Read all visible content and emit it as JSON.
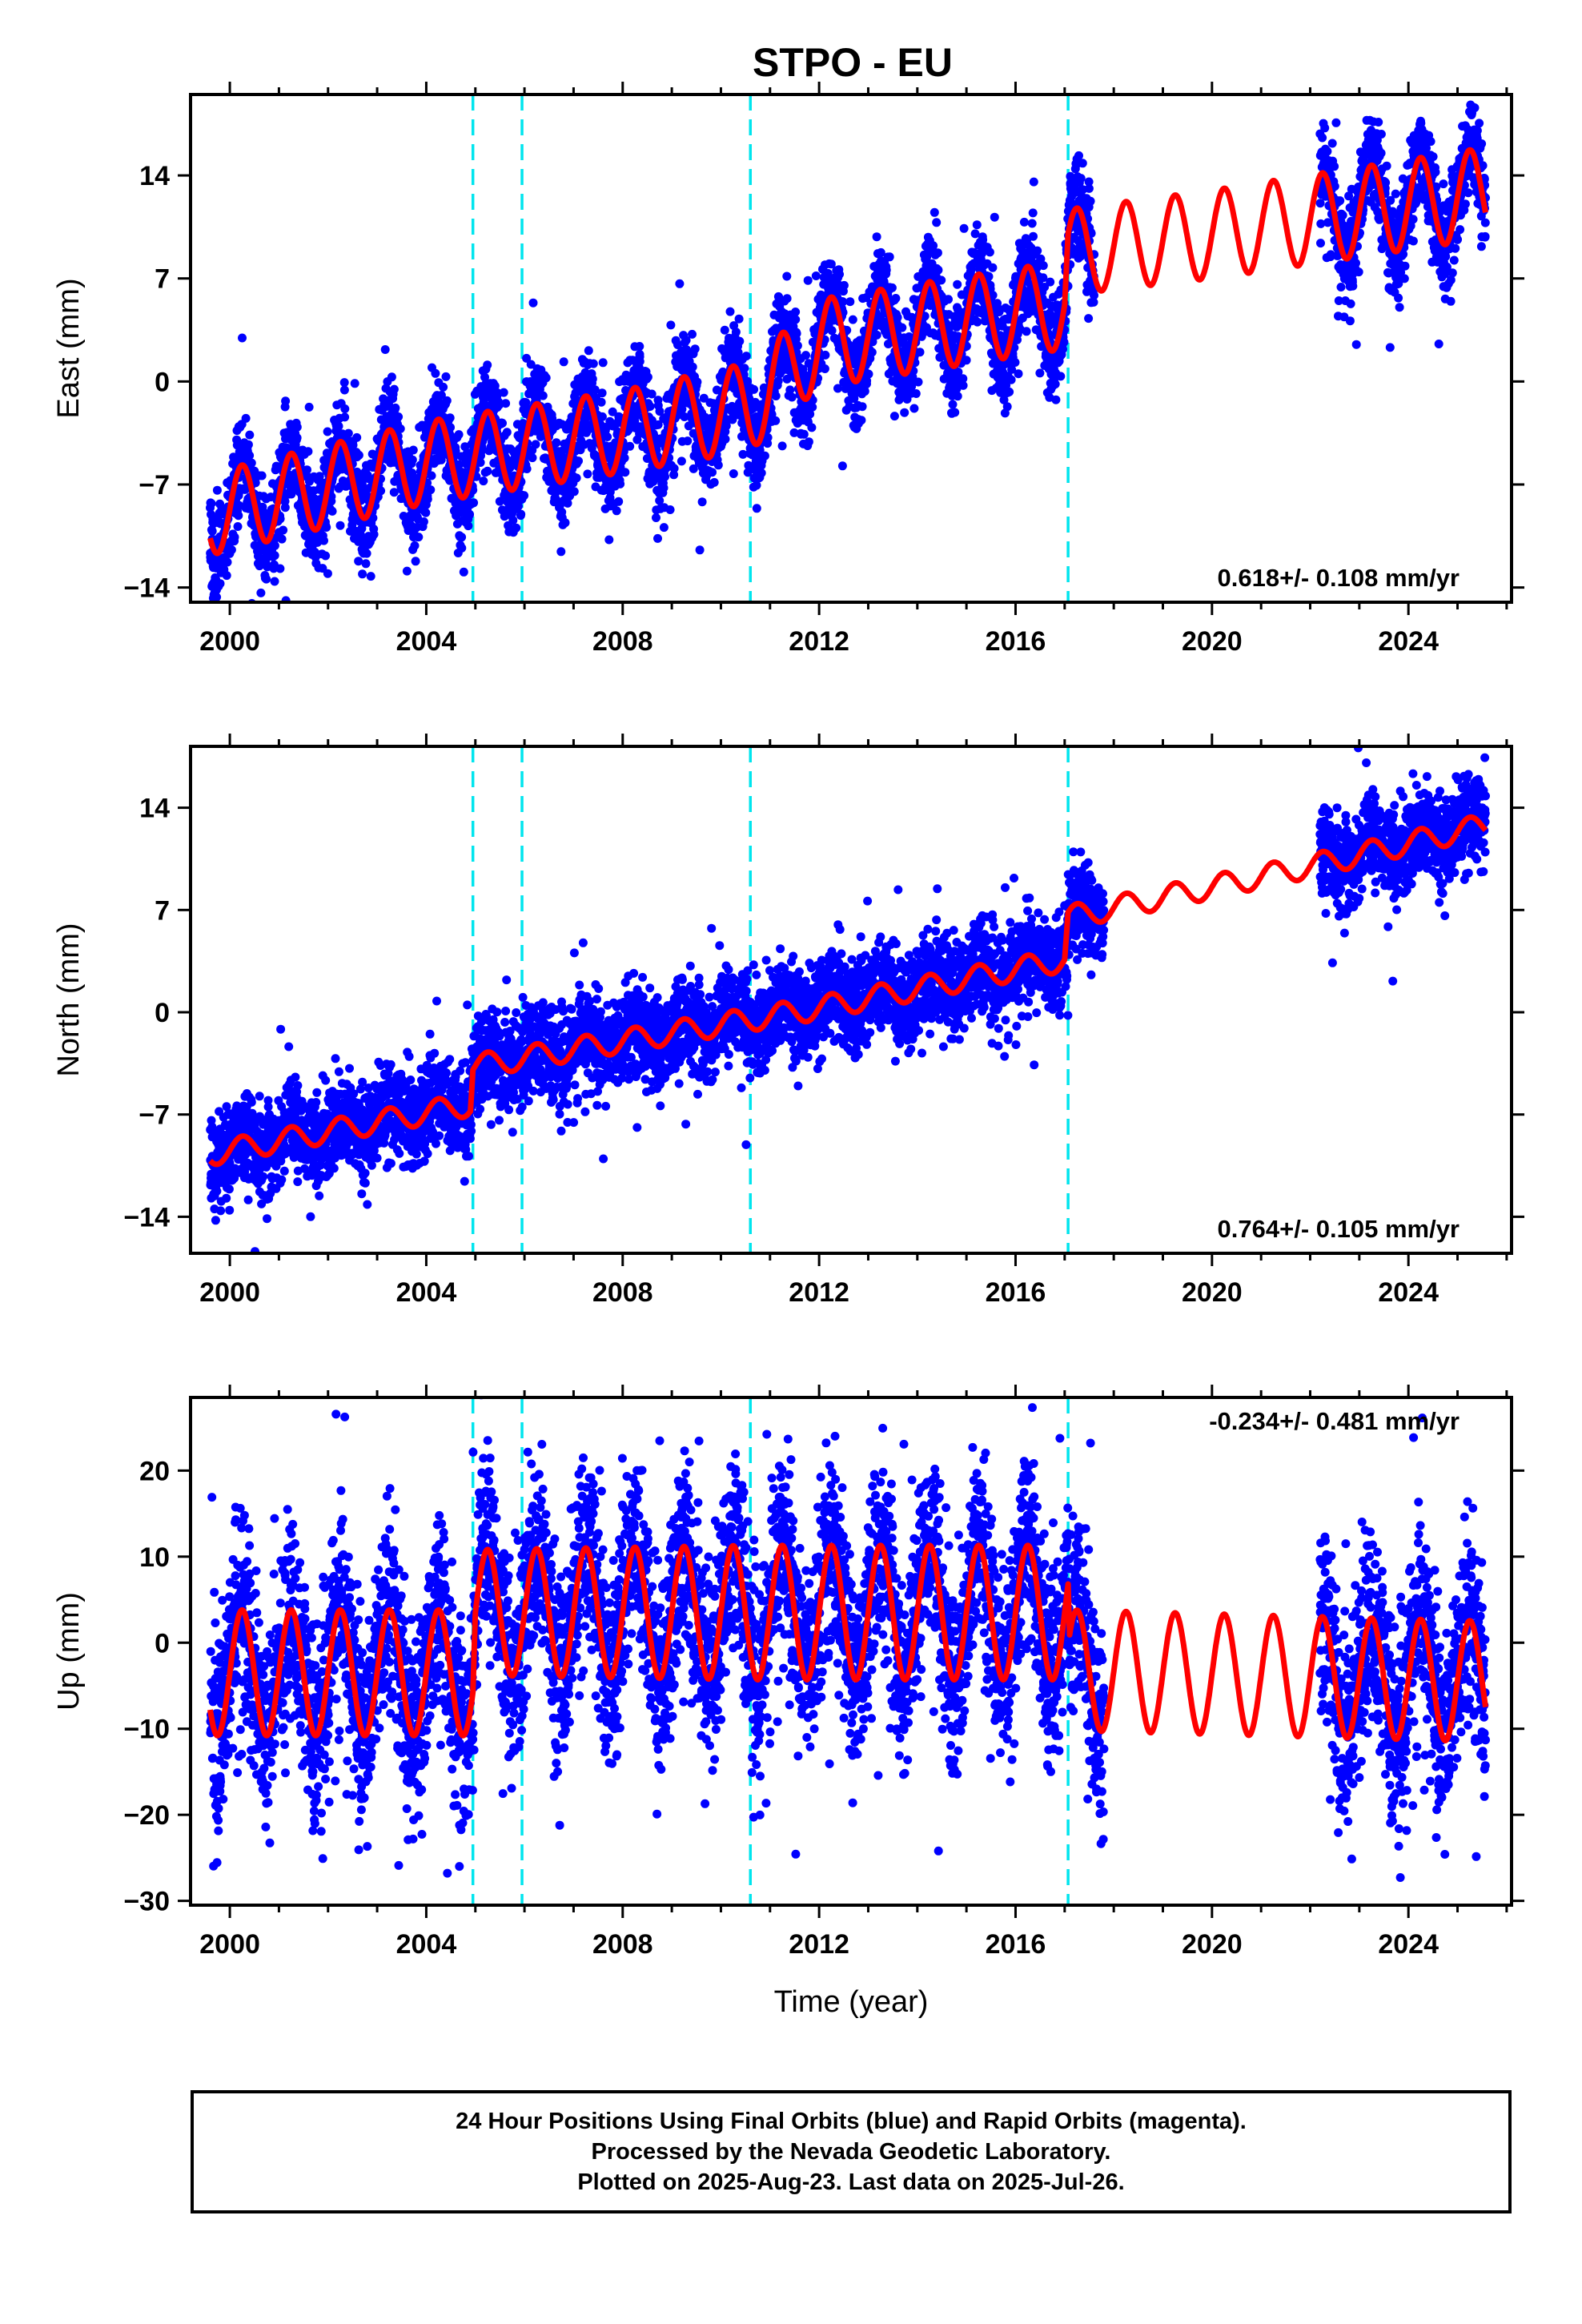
{
  "chart_data": [
    {
      "type": "scatter",
      "title": "STPO - EU",
      "xlabel": "",
      "ylabel": "East (mm)",
      "xlim": [
        1999.2,
        2026.1
      ],
      "ylim": [
        -15,
        19.5
      ],
      "xticks": [
        2000,
        2004,
        2008,
        2012,
        2016,
        2020,
        2024
      ],
      "yticks": [
        -14,
        -7,
        0,
        7,
        14
      ],
      "grid": false,
      "annotation": "0.618+/- 0.108 mm/yr",
      "annotation_position": "bottom-right",
      "offsets": [
        2004.95,
        2005.95,
        2010.6,
        2017.07
      ],
      "series": [
        {
          "color": "#0000ff",
          "kind": "points",
          "segments": [
            {
              "t_start": 1999.6,
              "t_end": 2017.6
            },
            {
              "t_start": 2022.2,
              "t_end": 2025.57
            }
          ]
        },
        {
          "color": "#ff0000",
          "kind": "model-line",
          "segments": [
            {
              "t": 1999.6,
              "mean": -9.0,
              "amplitude": 2.8
            },
            {
              "t": 2004.0,
              "mean": -5.5,
              "amplitude": 2.8
            },
            {
              "t": 2008.0,
              "mean": -3.4,
              "amplitude": 2.8
            },
            {
              "t": 2010.6,
              "mean": -1.7,
              "amplitude": 3.0
            },
            {
              "t": 2012.0,
              "mean": 2.6,
              "amplitude": 3.0
            },
            {
              "t": 2017.0,
              "mean": 5.2,
              "amplitude": 3.0
            },
            {
              "t": 2017.07,
              "mean": 8.8,
              "amplitude": 2.9
            },
            {
              "t": 2020.0,
              "mean": 10.0,
              "amplitude": 3.0
            },
            {
              "t": 2025.57,
              "mean": 12.8,
              "amplitude": 3.1
            }
          ]
        }
      ]
    },
    {
      "type": "scatter",
      "title": "",
      "xlabel": "",
      "ylabel": "North (mm)",
      "xlim": [
        1999.2,
        2026.1
      ],
      "ylim": [
        -16.5,
        18.2
      ],
      "xticks": [
        2000,
        2004,
        2008,
        2012,
        2016,
        2020,
        2024
      ],
      "yticks": [
        -14,
        -7,
        0,
        7,
        14
      ],
      "grid": false,
      "annotation": "0.764+/- 0.105 mm/yr",
      "annotation_position": "bottom-right",
      "offsets": [
        2004.95,
        2005.95,
        2010.6,
        2017.07
      ],
      "series": [
        {
          "color": "#0000ff",
          "kind": "points",
          "segments": [
            {
              "t_start": 1999.6,
              "t_end": 2017.8
            },
            {
              "t_start": 2022.2,
              "t_end": 2025.57
            }
          ]
        },
        {
          "color": "#ff0000",
          "kind": "model-line",
          "segments": [
            {
              "t": 1999.6,
              "mean": -9.7,
              "amplitude": 0.8
            },
            {
              "t": 2004.9,
              "mean": -6.3,
              "amplitude": 0.8
            },
            {
              "t": 2004.95,
              "mean": -3.7,
              "amplitude": 0.8
            },
            {
              "t": 2012.0,
              "mean": 0.3,
              "amplitude": 0.8
            },
            {
              "t": 2017.0,
              "mean": 3.6,
              "amplitude": 0.8
            },
            {
              "t": 2017.07,
              "mean": 6.5,
              "amplitude": 0.8
            },
            {
              "t": 2022.0,
              "mean": 10.0,
              "amplitude": 0.8
            },
            {
              "t": 2025.57,
              "mean": 12.8,
              "amplitude": 0.8
            }
          ]
        }
      ]
    },
    {
      "type": "scatter",
      "title": "",
      "xlabel": "Time (year)",
      "ylabel": "Up (mm)",
      "xlim": [
        1999.2,
        2026.1
      ],
      "ylim": [
        -30.5,
        28.5
      ],
      "xticks": [
        2000,
        2004,
        2008,
        2012,
        2016,
        2020,
        2024
      ],
      "yticks": [
        -30,
        -20,
        -10,
        0,
        10,
        20
      ],
      "grid": false,
      "annotation": "-0.234+/- 0.481 mm/yr",
      "annotation_position": "top-right",
      "offsets": [
        2004.95,
        2005.95,
        2010.6,
        2017.07
      ],
      "series": [
        {
          "color": "#0000ff",
          "kind": "points",
          "segments": [
            {
              "t_start": 1999.6,
              "t_end": 2017.8
            },
            {
              "t_start": 2022.2,
              "t_end": 2025.57
            }
          ]
        },
        {
          "color": "#ff0000",
          "kind": "model-line",
          "segments": [
            {
              "t": 1999.6,
              "mean": -3.5,
              "amplitude": 7.3
            },
            {
              "t": 2004.95,
              "mean": -3.5,
              "amplitude": 7.3
            },
            {
              "t": 2005.0,
              "mean": 3.5,
              "amplitude": 7.3
            },
            {
              "t": 2010.6,
              "mean": 3.5,
              "amplitude": 7.8
            },
            {
              "t": 2017.07,
              "mean": 3.5,
              "amplitude": 7.8
            },
            {
              "t": 2017.1,
              "mean": -3.2,
              "amplitude": 7.0
            },
            {
              "t": 2025.57,
              "mean": -4.5,
              "amplitude": 7.0
            }
          ]
        }
      ]
    }
  ],
  "colors": {
    "final_orbits": "#0000ff",
    "model": "#ff0000",
    "offsets": "#00e5ee",
    "axes": "#000000"
  },
  "footer": {
    "line1": "24 Hour Positions Using Final Orbits (blue) and Rapid Orbits (magenta).",
    "line2": "Processed by the Nevada Geodetic Laboratory.",
    "line3": "Plotted on 2025-Aug-23. Last data on 2025-Jul-26."
  }
}
